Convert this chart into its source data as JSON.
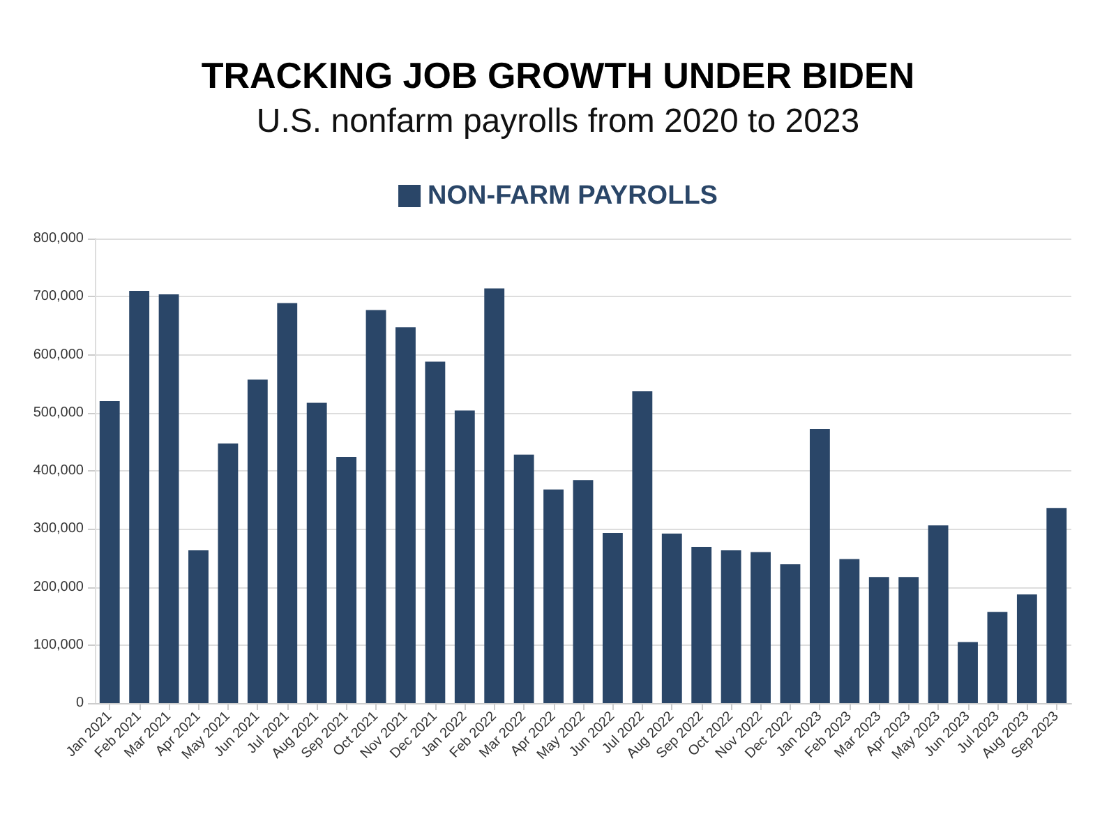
{
  "chart_data": {
    "type": "bar",
    "title": "TRACKING JOB GROWTH UNDER BIDEN",
    "subtitle": "U.S. nonfarm payrolls from 2020 to 2023",
    "categories": [
      "Jan 2021",
      "Feb 2021",
      "Mar 2021",
      "Apr 2021",
      "May 2021",
      "Jun 2021",
      "Jul 2021",
      "Aug 2021",
      "Sep 2021",
      "Oct 2021",
      "Nov 2021",
      "Dec 2021",
      "Jan 2022",
      "Feb 2022",
      "Mar 2022",
      "Apr 2022",
      "May 2022",
      "Jun 2022",
      "Jul 2022",
      "Aug 2022",
      "Sep 2022",
      "Oct 2022",
      "Nov 2022",
      "Dec 2022",
      "Jan 2023",
      "Feb 2023",
      "Mar 2023",
      "Apr 2023",
      "May 2023",
      "Jun 2023",
      "Jul 2023",
      "Aug 2023",
      "Sep 2023"
    ],
    "series": [
      {
        "name": "NON-FARM PAYROLLS",
        "color": "#2a4668",
        "values": [
          520000,
          710000,
          704000,
          263000,
          447000,
          557000,
          689000,
          517000,
          424000,
          677000,
          647000,
          588000,
          504000,
          714000,
          428000,
          368000,
          384000,
          293000,
          537000,
          292000,
          269000,
          263000,
          260000,
          239000,
          472000,
          248000,
          217000,
          217000,
          306000,
          105000,
          157000,
          187000,
          336000
        ]
      }
    ],
    "ylim": [
      0,
      800000
    ],
    "yticks": [
      0,
      {
        "value": 100000,
        "label": "100,000"
      },
      {
        "value": 200000,
        "label": "200,000"
      },
      {
        "value": 300000,
        "label": "300,000"
      },
      {
        "value": 400000,
        "label": "400,000"
      },
      {
        "value": 500000,
        "label": "500,000"
      },
      {
        "value": 600000,
        "label": "600,000"
      },
      {
        "value": 700000,
        "label": "700,000"
      },
      {
        "value": 800000,
        "label": "800,000"
      }
    ],
    "grid": "y",
    "legend": "top"
  }
}
